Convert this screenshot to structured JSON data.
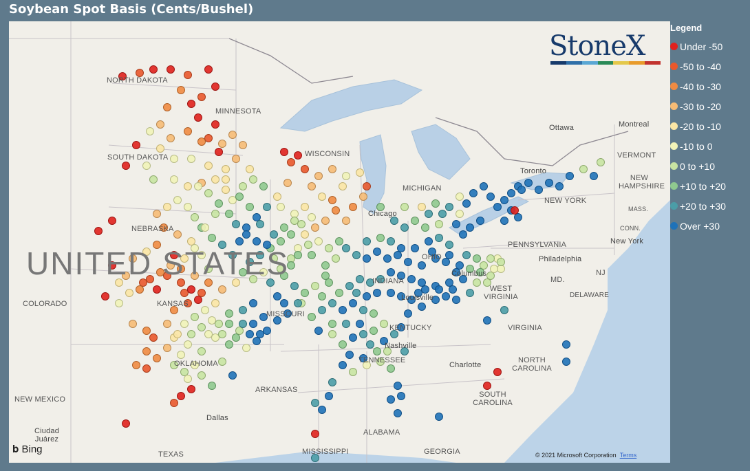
{
  "title": "Soybean Spot Basis (Cents/Bushel)",
  "legend": {
    "title": "Legend",
    "items": [
      {
        "label": "Under -50",
        "color": "#e0211d"
      },
      {
        "label": "-50 to -40",
        "color": "#e9582c"
      },
      {
        "label": "-40 to -30",
        "color": "#f08b43"
      },
      {
        "label": "-30 to -20",
        "color": "#f6bb75"
      },
      {
        "label": "-20 to -10",
        "color": "#fbe6a5"
      },
      {
        "label": "-10 to 0",
        "color": "#f1f3b8"
      },
      {
        "label": "0 to +10",
        "color": "#c8e4a2"
      },
      {
        "label": "+10 to +20",
        "color": "#8fc98f"
      },
      {
        "label": "+20 to +30",
        "color": "#4b9da7"
      },
      {
        "label": "Over +30",
        "color": "#1f72b8"
      }
    ]
  },
  "logo": {
    "text": "StoneX",
    "bar_colors": [
      "#173a6b",
      "#2f6fa8",
      "#5aa7d4",
      "#2a8a57",
      "#e4c84a",
      "#e89b2b",
      "#c2322e"
    ]
  },
  "map_labels": {
    "country": "UNITED STATES",
    "states": [
      "NORTH DAKOTA",
      "MINNESOTA",
      "SOUTH DAKOTA",
      "NEBRASKA",
      "COLORADO",
      "KANSAS",
      "MISSOURI",
      "OKLAHOMA",
      "NEW MEXICO",
      "TEXAS",
      "ARKANSAS",
      "MISSISSIPPI",
      "ALABAMA",
      "GEORGIA",
      "TENNESSEE",
      "KENTUCKY",
      "INDIANA",
      "WISCONSIN",
      "MICHIGAN",
      "PENNSYLVANIA",
      "NEW YORK",
      "VERMONT",
      "NEW HAMPSHIRE",
      "MASS.",
      "CONN.",
      "NJ",
      "MD.",
      "DELAWARE",
      "WEST VIRGINIA",
      "VIRGINIA",
      "NORTH CAROLINA",
      "SOUTH CAROLINA",
      "OHIO"
    ],
    "cities": [
      "Ottawa",
      "Montreal",
      "Toronto",
      "Chicago",
      "Columbus",
      "Louisville",
      "Nashville",
      "Philadelphia",
      "New York",
      "Dallas",
      "Charlotte",
      "Ciudad Juárez"
    ]
  },
  "attribution": {
    "bing": "Bing",
    "copyright": "© 2021 Microsoft Corporation",
    "terms": "Terms"
  },
  "points": [
    [
      165,
      80,
      0
    ],
    [
      190,
      75,
      1
    ],
    [
      210,
      70,
      0
    ],
    [
      235,
      70,
      0
    ],
    [
      260,
      78,
      1
    ],
    [
      290,
      70,
      0
    ],
    [
      300,
      95,
      0
    ],
    [
      280,
      110,
      1
    ],
    [
      265,
      120,
      0
    ],
    [
      275,
      140,
      0
    ],
    [
      300,
      150,
      0
    ],
    [
      290,
      170,
      1
    ],
    [
      305,
      190,
      0
    ],
    [
      250,
      100,
      2
    ],
    [
      230,
      125,
      2
    ],
    [
      220,
      150,
      3
    ],
    [
      235,
      170,
      3
    ],
    [
      260,
      160,
      2
    ],
    [
      280,
      175,
      2
    ],
    [
      310,
      178,
      3
    ],
    [
      325,
      165,
      3
    ],
    [
      340,
      180,
      3
    ],
    [
      330,
      200,
      3
    ],
    [
      350,
      215,
      4
    ],
    [
      315,
      215,
      4
    ],
    [
      290,
      210,
      4
    ],
    [
      265,
      200,
      5
    ],
    [
      240,
      200,
      5
    ],
    [
      220,
      185,
      4
    ],
    [
      205,
      160,
      5
    ],
    [
      200,
      210,
      5
    ],
    [
      185,
      180,
      0
    ],
    [
      170,
      210,
      0
    ],
    [
      210,
      230,
      6
    ],
    [
      240,
      230,
      5
    ],
    [
      260,
      240,
      4
    ],
    [
      280,
      235,
      3
    ],
    [
      300,
      230,
      4
    ],
    [
      315,
      245,
      4
    ],
    [
      325,
      260,
      5
    ],
    [
      340,
      240,
      6
    ],
    [
      355,
      230,
      6
    ],
    [
      370,
      240,
      7
    ],
    [
      375,
      270,
      8
    ],
    [
      360,
      285,
      9
    ],
    [
      345,
      300,
      9
    ],
    [
      335,
      320,
      9
    ],
    [
      325,
      340,
      8
    ],
    [
      310,
      325,
      8
    ],
    [
      295,
      315,
      7
    ],
    [
      280,
      300,
      7
    ],
    [
      270,
      285,
      6
    ],
    [
      260,
      270,
      5
    ],
    [
      245,
      260,
      5
    ],
    [
      230,
      270,
      4
    ],
    [
      215,
      280,
      3
    ],
    [
      225,
      300,
      2
    ],
    [
      245,
      310,
      3
    ],
    [
      265,
      320,
      4
    ],
    [
      280,
      340,
      5
    ],
    [
      290,
      360,
      6
    ],
    [
      270,
      370,
      3
    ],
    [
      250,
      360,
      2
    ],
    [
      230,
      370,
      1
    ],
    [
      215,
      390,
      0
    ],
    [
      195,
      380,
      1
    ],
    [
      175,
      395,
      4
    ],
    [
      160,
      410,
      5
    ],
    [
      150,
      355,
      0
    ],
    [
      140,
      400,
      0
    ],
    [
      130,
      305,
      0
    ],
    [
      150,
      290,
      0
    ],
    [
      180,
      345,
      3
    ],
    [
      200,
      335,
      4
    ],
    [
      215,
      325,
      2
    ],
    [
      240,
      340,
      0
    ],
    [
      255,
      395,
      1
    ],
    [
      275,
      405,
      0
    ],
    [
      260,
      410,
      1
    ],
    [
      240,
      420,
      2
    ],
    [
      230,
      440,
      3
    ],
    [
      210,
      460,
      1
    ],
    [
      200,
      480,
      2
    ],
    [
      185,
      500,
      2
    ],
    [
      180,
      440,
      3
    ],
    [
      200,
      450,
      2
    ],
    [
      240,
      460,
      4
    ],
    [
      260,
      470,
      5
    ],
    [
      280,
      480,
      6
    ],
    [
      270,
      500,
      5
    ],
    [
      255,
      510,
      6
    ],
    [
      250,
      545,
      0
    ],
    [
      265,
      535,
      0
    ],
    [
      240,
      555,
      1
    ],
    [
      170,
      585,
      0
    ],
    [
      295,
      530,
      7
    ],
    [
      300,
      460,
      5
    ],
    [
      320,
      440,
      7
    ],
    [
      340,
      420,
      8
    ],
    [
      355,
      410,
      9
    ],
    [
      370,
      430,
      9
    ],
    [
      390,
      400,
      9
    ],
    [
      380,
      380,
      8
    ],
    [
      395,
      360,
      6
    ],
    [
      410,
      345,
      6
    ],
    [
      420,
      330,
      5
    ],
    [
      430,
      310,
      4
    ],
    [
      445,
      300,
      3
    ],
    [
      460,
      290,
      3
    ],
    [
      475,
      275,
      2
    ],
    [
      490,
      290,
      3
    ],
    [
      500,
      270,
      2
    ],
    [
      515,
      255,
      3
    ],
    [
      520,
      240,
      1
    ],
    [
      510,
      220,
      4
    ],
    [
      490,
      225,
      5
    ],
    [
      470,
      215,
      3
    ],
    [
      450,
      225,
      3
    ],
    [
      430,
      215,
      1
    ],
    [
      410,
      205,
      1
    ],
    [
      400,
      190,
      0
    ],
    [
      420,
      195,
      0
    ],
    [
      440,
      240,
      3
    ],
    [
      455,
      255,
      4
    ],
    [
      470,
      260,
      2
    ],
    [
      485,
      240,
      4
    ],
    [
      405,
      235,
      3
    ],
    [
      390,
      255,
      4
    ],
    [
      395,
      270,
      5
    ],
    [
      415,
      280,
      5
    ],
    [
      430,
      270,
      4
    ],
    [
      440,
      285,
      5
    ],
    [
      425,
      295,
      6
    ],
    [
      410,
      310,
      7
    ],
    [
      395,
      320,
      7
    ],
    [
      380,
      330,
      7
    ],
    [
      365,
      340,
      8
    ],
    [
      350,
      350,
      8
    ],
    [
      340,
      365,
      7
    ],
    [
      355,
      375,
      6
    ],
    [
      370,
      365,
      5
    ],
    [
      385,
      345,
      6
    ],
    [
      440,
      340,
      7
    ],
    [
      460,
      355,
      7
    ],
    [
      475,
      345,
      6
    ],
    [
      490,
      330,
      8
    ],
    [
      505,
      340,
      8
    ],
    [
      520,
      345,
      9
    ],
    [
      535,
      335,
      9
    ],
    [
      550,
      345,
      9
    ],
    [
      565,
      340,
      9
    ],
    [
      580,
      350,
      9
    ],
    [
      600,
      355,
      9
    ],
    [
      620,
      345,
      9
    ],
    [
      640,
      340,
      9
    ],
    [
      655,
      355,
      9
    ],
    [
      670,
      360,
      7
    ],
    [
      690,
      355,
      6
    ],
    [
      710,
      345,
      5
    ],
    [
      700,
      370,
      6
    ],
    [
      680,
      380,
      6
    ],
    [
      660,
      375,
      9
    ],
    [
      640,
      380,
      9
    ],
    [
      620,
      385,
      9
    ],
    [
      600,
      380,
      9
    ],
    [
      585,
      375,
      9
    ],
    [
      570,
      370,
      9
    ],
    [
      555,
      365,
      9
    ],
    [
      540,
      375,
      8
    ],
    [
      525,
      380,
      8
    ],
    [
      510,
      375,
      8
    ],
    [
      495,
      385,
      8
    ],
    [
      480,
      395,
      7
    ],
    [
      465,
      380,
      7
    ],
    [
      455,
      400,
      7
    ],
    [
      470,
      410,
      8
    ],
    [
      485,
      420,
      9
    ],
    [
      500,
      410,
      9
    ],
    [
      515,
      420,
      8
    ],
    [
      530,
      425,
      7
    ],
    [
      545,
      440,
      6
    ],
    [
      530,
      450,
      7
    ],
    [
      515,
      455,
      8
    ],
    [
      500,
      460,
      9
    ],
    [
      485,
      470,
      7
    ],
    [
      470,
      455,
      6
    ],
    [
      450,
      450,
      9
    ],
    [
      440,
      430,
      7
    ],
    [
      455,
      420,
      8
    ],
    [
      425,
      410,
      6
    ],
    [
      405,
      425,
      9
    ],
    [
      390,
      435,
      9
    ],
    [
      375,
      450,
      9
    ],
    [
      360,
      465,
      9
    ],
    [
      345,
      475,
      5
    ],
    [
      335,
      450,
      6
    ],
    [
      320,
      470,
      7
    ],
    [
      310,
      495,
      6
    ],
    [
      325,
      515,
      9
    ],
    [
      495,
      485,
      9
    ],
    [
      515,
      490,
      9
    ],
    [
      485,
      500,
      9
    ],
    [
      470,
      525,
      8
    ],
    [
      465,
      545,
      9
    ],
    [
      455,
      565,
      9
    ],
    [
      445,
      555,
      8
    ],
    [
      500,
      510,
      6
    ],
    [
      520,
      500,
      5
    ],
    [
      540,
      495,
      6
    ],
    [
      555,
      505,
      7
    ],
    [
      565,
      530,
      9
    ],
    [
      570,
      545,
      9
    ],
    [
      555,
      550,
      9
    ],
    [
      565,
      570,
      9
    ],
    [
      625,
      575,
      9
    ],
    [
      545,
      465,
      9
    ],
    [
      560,
      455,
      8
    ],
    [
      570,
      445,
      9
    ],
    [
      580,
      425,
      9
    ],
    [
      600,
      415,
      9
    ],
    [
      620,
      405,
      9
    ],
    [
      635,
      400,
      9
    ],
    [
      650,
      405,
      9
    ],
    [
      595,
      395,
      9
    ],
    [
      610,
      320,
      9
    ],
    [
      625,
      315,
      8
    ],
    [
      640,
      325,
      8
    ],
    [
      605,
      300,
      7
    ],
    [
      590,
      290,
      7
    ],
    [
      575,
      270,
      6
    ],
    [
      600,
      270,
      4
    ],
    [
      620,
      265,
      7
    ],
    [
      640,
      270,
      8
    ],
    [
      655,
      280,
      5
    ],
    [
      665,
      265,
      9
    ],
    [
      675,
      250,
      9
    ],
    [
      690,
      240,
      9
    ],
    [
      700,
      255,
      9
    ],
    [
      710,
      270,
      9
    ],
    [
      720,
      260,
      9
    ],
    [
      730,
      250,
      9
    ],
    [
      740,
      240,
      9
    ],
    [
      755,
      235,
      9
    ],
    [
      770,
      245,
      9
    ],
    [
      785,
      235,
      9
    ],
    [
      800,
      240,
      9
    ],
    [
      815,
      225,
      9
    ],
    [
      835,
      215,
      6
    ],
    [
      860,
      205,
      6
    ],
    [
      850,
      225,
      9
    ],
    [
      685,
      290,
      9
    ],
    [
      670,
      300,
      9
    ],
    [
      660,
      310,
      9
    ],
    [
      650,
      295,
      9
    ],
    [
      720,
      290,
      9
    ],
    [
      730,
      275,
      9
    ],
    [
      740,
      285,
      9
    ],
    [
      745,
      245,
      9
    ],
    [
      735,
      275,
      0
    ],
    [
      655,
      255,
      5
    ],
    [
      540,
      315,
      7
    ],
    [
      520,
      320,
      8
    ],
    [
      555,
      320,
      8
    ],
    [
      625,
      295,
      6
    ],
    [
      695,
      435,
      9
    ],
    [
      720,
      420,
      8
    ],
    [
      810,
      470,
      9
    ],
    [
      810,
      495,
      9
    ],
    [
      710,
      510,
      0
    ],
    [
      695,
      530,
      0
    ],
    [
      445,
      635,
      8
    ],
    [
      445,
      600,
      0
    ],
    [
      275,
      240,
      5
    ],
    [
      290,
      250,
      6
    ],
    [
      305,
      265,
      7
    ],
    [
      320,
      280,
      7
    ],
    [
      330,
      295,
      8
    ],
    [
      345,
      310,
      9
    ],
    [
      360,
      320,
      9
    ],
    [
      375,
      325,
      9
    ],
    [
      385,
      310,
      8
    ],
    [
      400,
      300,
      7
    ],
    [
      415,
      290,
      6
    ],
    [
      365,
      295,
      8
    ],
    [
      350,
      270,
      7
    ],
    [
      335,
      255,
      7
    ],
    [
      315,
      230,
      4
    ],
    [
      300,
      280,
      6
    ],
    [
      285,
      300,
      5
    ],
    [
      270,
      330,
      5
    ],
    [
      255,
      345,
      4
    ],
    [
      235,
      355,
      3
    ],
    [
      220,
      365,
      2
    ],
    [
      205,
      375,
      1
    ],
    [
      190,
      390,
      2
    ],
    [
      170,
      370,
      3
    ],
    [
      160,
      380,
      4
    ],
    [
      250,
      380,
      1
    ],
    [
      265,
      390,
      0
    ],
    [
      280,
      395,
      1
    ],
    [
      290,
      380,
      2
    ],
    [
      310,
      390,
      3
    ],
    [
      330,
      380,
      4
    ],
    [
      300,
      410,
      4
    ],
    [
      285,
      420,
      5
    ],
    [
      270,
      430,
      6
    ],
    [
      255,
      440,
      5
    ],
    [
      245,
      455,
      4
    ],
    [
      230,
      475,
      3
    ],
    [
      215,
      490,
      2
    ],
    [
      200,
      505,
      1
    ],
    [
      265,
      455,
      6
    ],
    [
      280,
      445,
      6
    ],
    [
      295,
      435,
      5
    ],
    [
      250,
      485,
      5
    ],
    [
      240,
      500,
      6
    ],
    [
      260,
      520,
      5
    ],
    [
      280,
      515,
      6
    ],
    [
      540,
      270,
      7
    ],
    [
      560,
      290,
      8
    ],
    [
      575,
      300,
      8
    ],
    [
      610,
      280,
      8
    ],
    [
      630,
      280,
      8
    ],
    [
      570,
      330,
      9
    ],
    [
      590,
      330,
      9
    ],
    [
      615,
      335,
      9
    ],
    [
      635,
      350,
      9
    ],
    [
      650,
      365,
      9
    ],
    [
      665,
      340,
      8
    ],
    [
      680,
      345,
      7
    ],
    [
      700,
      345,
      6
    ],
    [
      715,
      360,
      5
    ],
    [
      480,
      320,
      7
    ],
    [
      465,
      330,
      6
    ],
    [
      450,
      320,
      5
    ],
    [
      435,
      325,
      6
    ],
    [
      420,
      340,
      7
    ],
    [
      410,
      355,
      7
    ],
    [
      400,
      370,
      7
    ],
    [
      415,
      385,
      8
    ],
    [
      430,
      395,
      7
    ],
    [
      445,
      385,
      6
    ],
    [
      460,
      370,
      7
    ],
    [
      420,
      410,
      8
    ],
    [
      400,
      410,
      9
    ],
    [
      355,
      440,
      9
    ],
    [
      340,
      440,
      8
    ],
    [
      320,
      425,
      7
    ],
    [
      305,
      440,
      6
    ],
    [
      290,
      455,
      5
    ],
    [
      310,
      455,
      6
    ],
    [
      330,
      460,
      7
    ],
    [
      350,
      455,
      9
    ],
    [
      365,
      455,
      9
    ],
    [
      510,
      440,
      9
    ],
    [
      525,
      470,
      8
    ],
    [
      535,
      480,
      7
    ],
    [
      550,
      480,
      6
    ],
    [
      575,
      480,
      8
    ],
    [
      470,
      440,
      7
    ],
    [
      490,
      440,
      8
    ],
    [
      505,
      395,
      8
    ],
    [
      520,
      400,
      9
    ],
    [
      535,
      395,
      9
    ],
    [
      555,
      395,
      9
    ],
    [
      570,
      400,
      9
    ],
    [
      585,
      405,
      9
    ],
    [
      605,
      390,
      9
    ],
    [
      625,
      390,
      9
    ],
    [
      645,
      390,
      9
    ],
    [
      670,
      395,
      8
    ],
    [
      685,
      365,
      7
    ],
    [
      695,
      380,
      6
    ],
    [
      705,
      360,
      5
    ],
    [
      715,
      350,
      6
    ]
  ]
}
